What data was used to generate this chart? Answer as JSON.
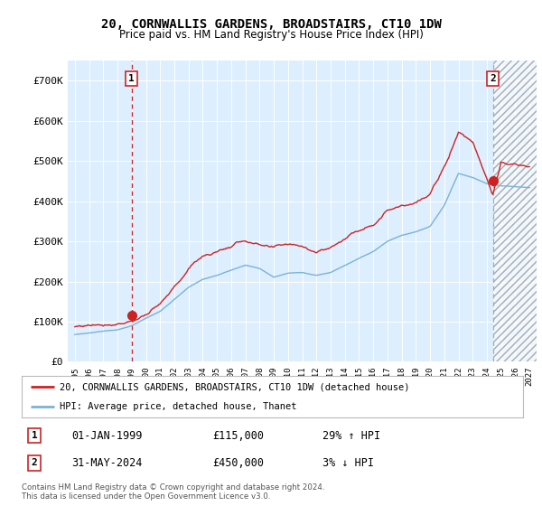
{
  "title": "20, CORNWALLIS GARDENS, BROADSTAIRS, CT10 1DW",
  "subtitle": "Price paid vs. HM Land Registry's House Price Index (HPI)",
  "legend_line1": "20, CORNWALLIS GARDENS, BROADSTAIRS, CT10 1DW (detached house)",
  "legend_line2": "HPI: Average price, detached house, Thanet",
  "annotation1_date": "01-JAN-1999",
  "annotation1_price": "£115,000",
  "annotation1_hpi": "29% ↑ HPI",
  "annotation2_date": "31-MAY-2024",
  "annotation2_price": "£450,000",
  "annotation2_hpi": "3% ↓ HPI",
  "footnote": "Contains HM Land Registry data © Crown copyright and database right 2024.\nThis data is licensed under the Open Government Licence v3.0.",
  "sale1_x": 1999.0,
  "sale1_y": 115000,
  "sale2_x": 2024.42,
  "sale2_y": 450000,
  "hpi_color": "#7ab3d4",
  "price_color": "#cc2222",
  "vline1_color": "#cc2222",
  "vline2_color": "#aaaaaa",
  "background_color": "#ddeeff",
  "plot_bg": "#ddeeff",
  "ylim": [
    0,
    750000
  ],
  "xlim_left": 1994.5,
  "xlim_right": 2027.5,
  "yticks": [
    0,
    100000,
    200000,
    300000,
    400000,
    500000,
    600000,
    700000
  ],
  "ytick_labels": [
    "£0",
    "£100K",
    "£200K",
    "£300K",
    "£400K",
    "£500K",
    "£600K",
    "£700K"
  ]
}
